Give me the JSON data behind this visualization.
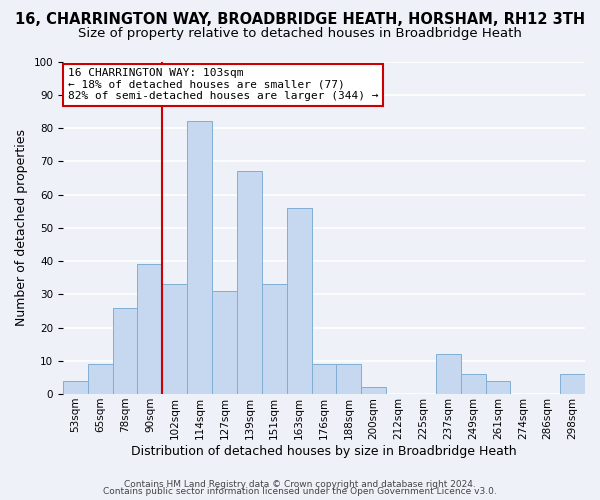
{
  "title1": "16, CHARRINGTON WAY, BROADBRIDGE HEATH, HORSHAM, RH12 3TH",
  "title2": "Size of property relative to detached houses in Broadbridge Heath",
  "xlabel": "Distribution of detached houses by size in Broadbridge Heath",
  "ylabel": "Number of detached properties",
  "footer1": "Contains HM Land Registry data © Crown copyright and database right 2024.",
  "footer2": "Contains public sector information licensed under the Open Government Licence v3.0.",
  "annotation_line1": "16 CHARRINGTON WAY: 103sqm",
  "annotation_line2": "← 18% of detached houses are smaller (77)",
  "annotation_line3": "82% of semi-detached houses are larger (344) →",
  "bar_color": "#c5d8f0",
  "bar_edge_color": "#7fafd4",
  "ref_line_color": "#cc0000",
  "ref_line_index": 4,
  "categories": [
    "53sqm",
    "65sqm",
    "78sqm",
    "90sqm",
    "102sqm",
    "114sqm",
    "127sqm",
    "139sqm",
    "151sqm",
    "163sqm",
    "176sqm",
    "188sqm",
    "200sqm",
    "212sqm",
    "225sqm",
    "237sqm",
    "249sqm",
    "261sqm",
    "274sqm",
    "286sqm",
    "298sqm"
  ],
  "values": [
    4,
    9,
    26,
    39,
    33,
    82,
    31,
    67,
    33,
    56,
    9,
    9,
    2,
    0,
    0,
    12,
    6,
    4,
    0,
    0,
    6
  ],
  "ylim": [
    0,
    100
  ],
  "background_color": "#eef2f8",
  "grid_color": "#ffffff",
  "title1_fontsize": 10.5,
  "title2_fontsize": 9.5,
  "axis_label_fontsize": 9,
  "tick_fontsize": 7.5,
  "footer_fontsize": 6.5,
  "annotation_fontsize": 8
}
